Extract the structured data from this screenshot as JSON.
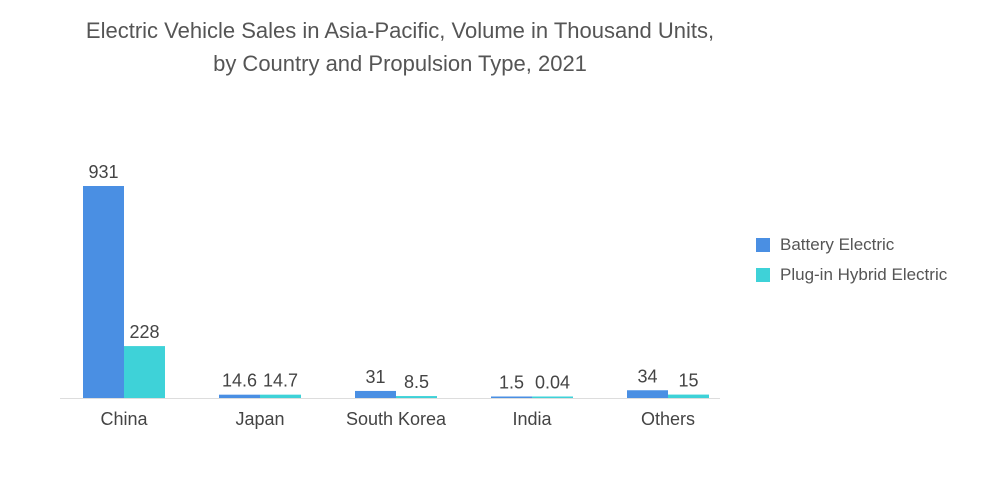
{
  "chart_data": {
    "type": "bar",
    "title_line1": "Electric Vehicle Sales in Asia-Pacific, Volume in Thousand Units,",
    "title_line2": "by Country and Propulsion Type, 2021",
    "categories": [
      "China",
      "Japan",
      "South Korea",
      "India",
      "Others"
    ],
    "series": [
      {
        "name": "Battery Electric",
        "values": [
          931,
          14.6,
          31,
          1.5,
          34
        ],
        "labels": [
          "931",
          "14.6",
          "31",
          "1.5",
          "34"
        ],
        "color": "#4a8fe3"
      },
      {
        "name": "Plug-in Hybrid Electric",
        "values": [
          228,
          14.7,
          8.5,
          0.04,
          15
        ],
        "labels": [
          "228",
          "14.7",
          "8.5",
          "0.04",
          "15"
        ],
        "color": "#3ed2d8"
      }
    ],
    "ylim": [
      0,
      931
    ],
    "grid": false,
    "legend": "right"
  }
}
